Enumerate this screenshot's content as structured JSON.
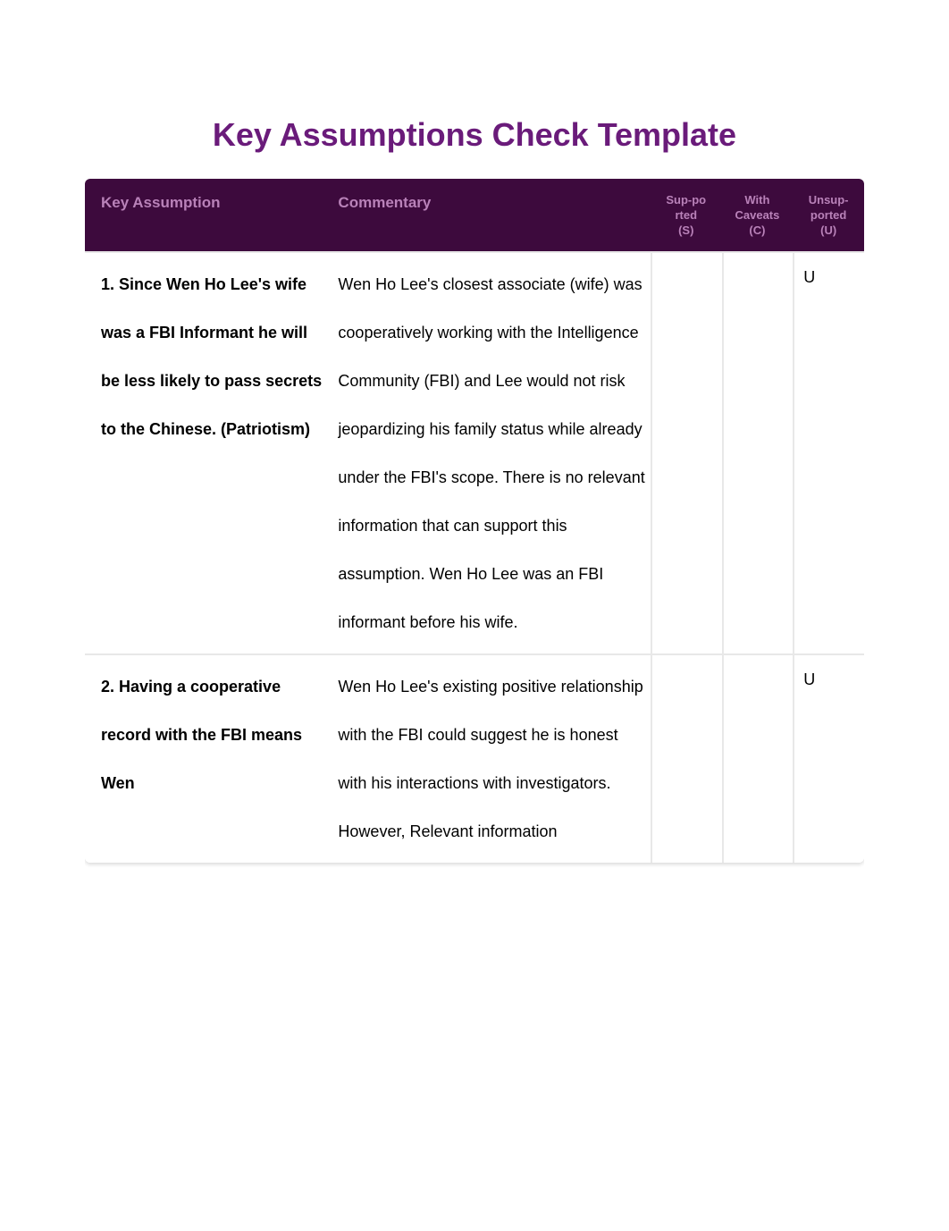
{
  "title": {
    "text": "Key Assumptions Check Template",
    "color": "#6a1b7a"
  },
  "header": {
    "bg": "#3d0a3d",
    "fg": "#b982b9",
    "col_assumption": "Key Assumption",
    "col_commentary": "Commentary",
    "col_supported_l1": "Sup-po",
    "col_supported_l2": "rted",
    "col_supported_l3": "(S)",
    "col_caveats_l1": "With",
    "col_caveats_l2": "Caveats",
    "col_caveats_l3": "(C)",
    "col_unsupported_l1": "Unsup-",
    "col_unsupported_l2": "ported",
    "col_unsupported_l3": "(U)"
  },
  "rows": [
    {
      "assumption": "1. Since Wen Ho Lee's wife was a FBI Informant he will be less likely to pass secrets to the Chinese. (Patriotism)",
      "commentary": "Wen Ho Lee's closest associate (wife) was cooperatively working with the Intelligence Community (FBI) and Lee would not risk jeopardizing his family status while already under the FBI's scope. There is no relevant information that can support this assumption. Wen Ho Lee was an FBI informant before his wife.",
      "supported": "",
      "caveats": "",
      "unsupported": "U"
    },
    {
      "assumption": "2. Having a cooperative record with the FBI means Wen",
      "commentary": "Wen Ho Lee's existing positive relationship with the FBI could suggest he is honest with his interactions with investigators. However, Relevant information",
      "supported": "",
      "caveats": "",
      "unsupported": "U"
    }
  ]
}
